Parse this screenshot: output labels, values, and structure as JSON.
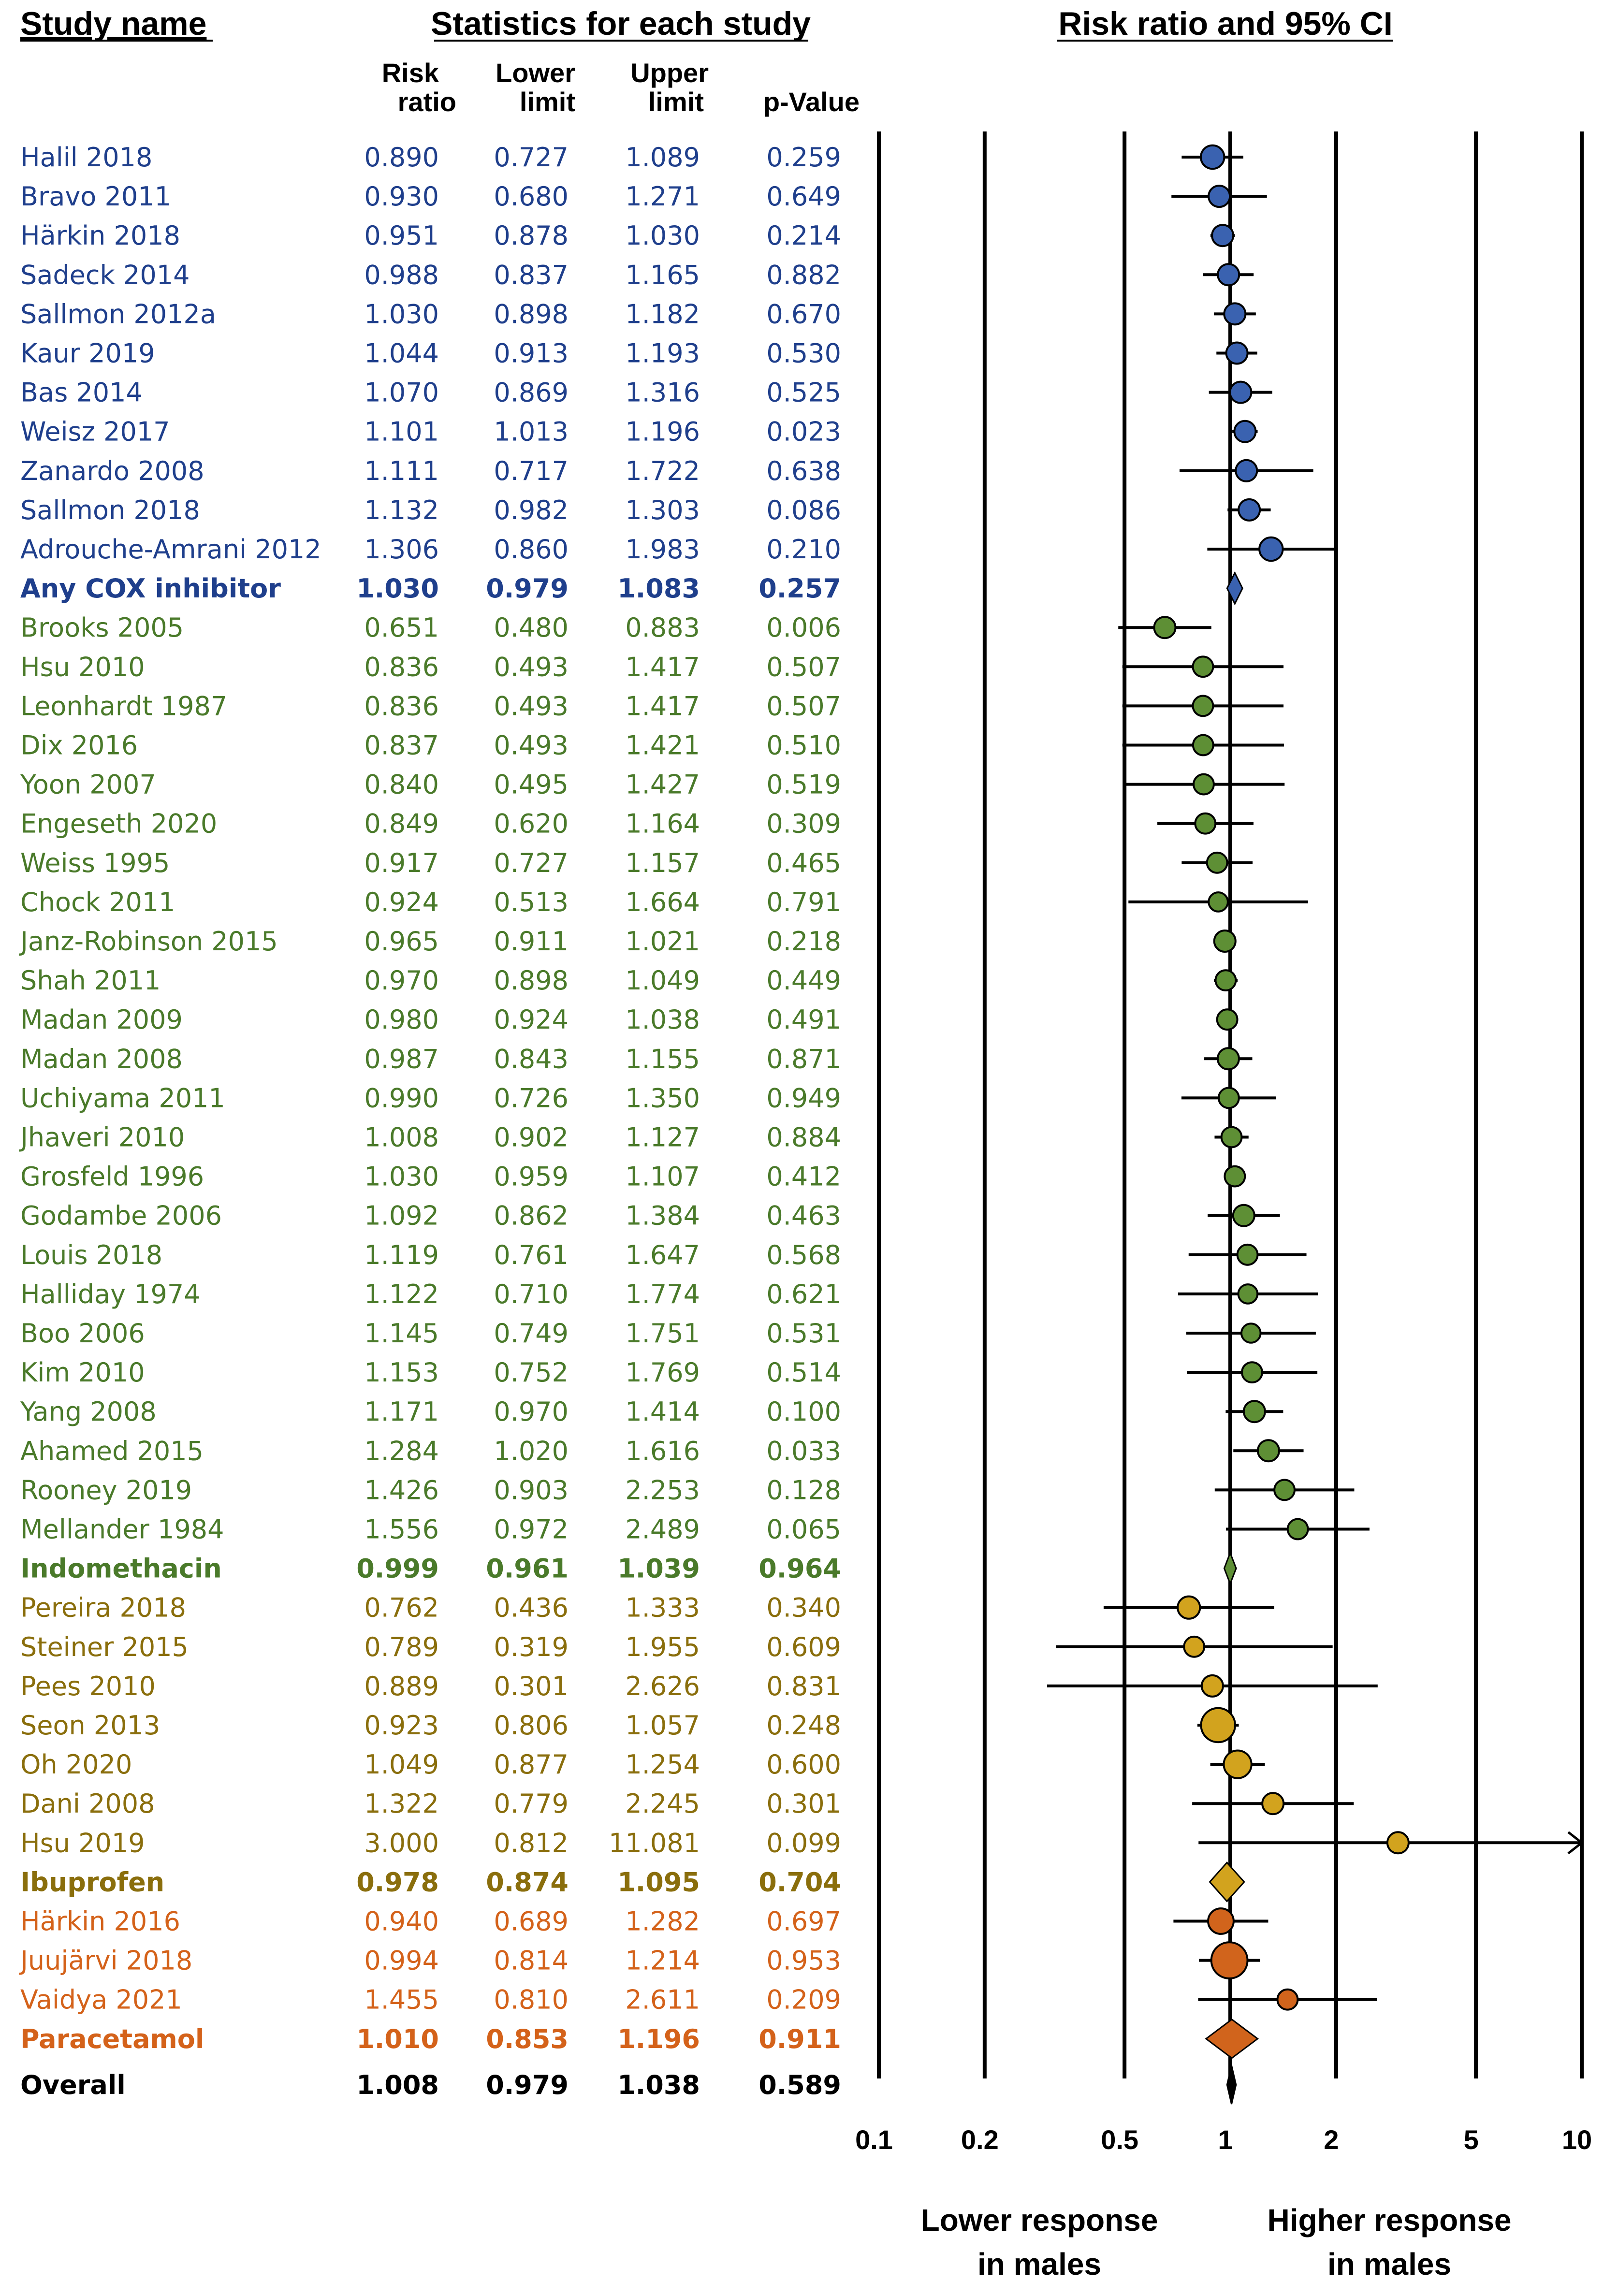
{
  "chart_data": {
    "type": "forest",
    "headers": {
      "study_name": "Study name",
      "statistics": "Statistics for each study",
      "plot": "Risk ratio and 95% CI",
      "risk_ratio_1": "Risk",
      "risk_ratio_2": "ratio",
      "lower_1": "Lower",
      "lower_2": "limit",
      "upper_1": "Upper",
      "upper_2": "limit",
      "pvalue": "p-Value"
    },
    "x_axis": {
      "scale": "log",
      "range": [
        0.1,
        10
      ],
      "ticks": [
        {
          "value": 0.1,
          "label": "0.1"
        },
        {
          "value": 0.2,
          "label": "0.2"
        },
        {
          "value": 0.5,
          "label": "0.5"
        },
        {
          "value": 1,
          "label": "1"
        },
        {
          "value": 2,
          "label": "2"
        },
        {
          "value": 5,
          "label": "5"
        },
        {
          "value": 10,
          "label": "10"
        }
      ],
      "label_left_1": "Lower response",
      "label_left_2": "in males",
      "label_right_1": "Higher response",
      "label_right_2": "in males"
    },
    "colors": {
      "cox": "#1f3f8c",
      "cox_fill": "#3a62b0",
      "indo": "#4a7a2a",
      "indo_fill": "#5e8f35",
      "ibu": "#8a6e0c",
      "ibu_fill": "#d2a31e",
      "para": "#d4621a",
      "para_fill": "#d1641c",
      "overall": "#000000"
    },
    "rows": [
      {
        "study": "Halil 2018",
        "rr": "0.890",
        "lo": "0.727",
        "hi": "1.089",
        "p": "0.259",
        "g": "cox",
        "kind": "study",
        "w": 1.1
      },
      {
        "study": "Bravo 2011",
        "rr": "0.930",
        "lo": "0.680",
        "hi": "1.271",
        "p": "0.649",
        "g": "cox",
        "kind": "study",
        "w": 1.0
      },
      {
        "study": "Härkin 2018",
        "rr": "0.951",
        "lo": "0.878",
        "hi": "1.030",
        "p": "0.214",
        "g": "cox",
        "kind": "study",
        "w": 1.0
      },
      {
        "study": "Sadeck 2014",
        "rr": "0.988",
        "lo": "0.837",
        "hi": "1.165",
        "p": "0.882",
        "g": "cox",
        "kind": "study",
        "w": 1.0
      },
      {
        "study": "Sallmon 2012a",
        "rr": "1.030",
        "lo": "0.898",
        "hi": "1.182",
        "p": "0.670",
        "g": "cox",
        "kind": "study",
        "w": 1.0
      },
      {
        "study": "Kaur 2019",
        "rr": "1.044",
        "lo": "0.913",
        "hi": "1.193",
        "p": "0.530",
        "g": "cox",
        "kind": "study",
        "w": 1.0
      },
      {
        "study": "Bas 2014",
        "rr": "1.070",
        "lo": "0.869",
        "hi": "1.316",
        "p": "0.525",
        "g": "cox",
        "kind": "study",
        "w": 1.0
      },
      {
        "study": "Weisz 2017",
        "rr": "1.101",
        "lo": "1.013",
        "hi": "1.196",
        "p": "0.023",
        "g": "cox",
        "kind": "study",
        "w": 1.0
      },
      {
        "study": "Zanardo 2008",
        "rr": "1.111",
        "lo": "0.717",
        "hi": "1.722",
        "p": "0.638",
        "g": "cox",
        "kind": "study",
        "w": 1.0
      },
      {
        "study": "Sallmon 2018",
        "rr": "1.132",
        "lo": "0.982",
        "hi": "1.303",
        "p": "0.086",
        "g": "cox",
        "kind": "study",
        "w": 1.0
      },
      {
        "study": "Adrouche-Amrani 2012",
        "rr": "1.306",
        "lo": "0.860",
        "hi": "1.983",
        "p": "0.210",
        "g": "cox",
        "kind": "study",
        "w": 1.1
      },
      {
        "study": "Any COX inhibitor",
        "rr": "1.030",
        "lo": "0.979",
        "hi": "1.083",
        "p": "0.257",
        "g": "cox",
        "kind": "summary"
      },
      {
        "study": "Brooks 2005",
        "rr": "0.651",
        "lo": "0.480",
        "hi": "0.883",
        "p": "0.006",
        "g": "indo",
        "kind": "study",
        "w": 1.0
      },
      {
        "study": "Hsu 2010",
        "rr": "0.836",
        "lo": "0.493",
        "hi": "1.417",
        "p": "0.507",
        "g": "indo",
        "kind": "study",
        "w": 0.95
      },
      {
        "study": "Leonhardt 1987",
        "rr": "0.836",
        "lo": "0.493",
        "hi": "1.417",
        "p": "0.507",
        "g": "indo",
        "kind": "study",
        "w": 0.95
      },
      {
        "study": "Dix 2016",
        "rr": "0.837",
        "lo": "0.493",
        "hi": "1.421",
        "p": "0.510",
        "g": "indo",
        "kind": "study",
        "w": 0.95
      },
      {
        "study": "Yoon 2007",
        "rr": "0.840",
        "lo": "0.495",
        "hi": "1.427",
        "p": "0.519",
        "g": "indo",
        "kind": "study",
        "w": 0.95
      },
      {
        "study": "Engeseth 2020",
        "rr": "0.849",
        "lo": "0.620",
        "hi": "1.164",
        "p": "0.309",
        "g": "indo",
        "kind": "study",
        "w": 0.95
      },
      {
        "study": "Weiss 1995",
        "rr": "0.917",
        "lo": "0.727",
        "hi": "1.157",
        "p": "0.465",
        "g": "indo",
        "kind": "study",
        "w": 0.95
      },
      {
        "study": "Chock 2011",
        "rr": "0.924",
        "lo": "0.513",
        "hi": "1.664",
        "p": "0.791",
        "g": "indo",
        "kind": "study",
        "w": 0.9
      },
      {
        "study": "Janz-Robinson 2015",
        "rr": "0.965",
        "lo": "0.911",
        "hi": "1.021",
        "p": "0.218",
        "g": "indo",
        "kind": "study",
        "w": 1.0
      },
      {
        "study": "Shah 2011",
        "rr": "0.970",
        "lo": "0.898",
        "hi": "1.049",
        "p": "0.449",
        "g": "indo",
        "kind": "study",
        "w": 0.95
      },
      {
        "study": "Madan 2009",
        "rr": "0.980",
        "lo": "0.924",
        "hi": "1.038",
        "p": "0.491",
        "g": "indo",
        "kind": "study",
        "w": 0.95
      },
      {
        "study": "Madan 2008",
        "rr": "0.987",
        "lo": "0.843",
        "hi": "1.155",
        "p": "0.871",
        "g": "indo",
        "kind": "study",
        "w": 1.0
      },
      {
        "study": "Uchiyama 2011",
        "rr": "0.990",
        "lo": "0.726",
        "hi": "1.350",
        "p": "0.949",
        "g": "indo",
        "kind": "study",
        "w": 0.95
      },
      {
        "study": "Jhaveri 2010",
        "rr": "1.008",
        "lo": "0.902",
        "hi": "1.127",
        "p": "0.884",
        "g": "indo",
        "kind": "study",
        "w": 0.95
      },
      {
        "study": "Grosfeld 1996",
        "rr": "1.030",
        "lo": "0.959",
        "hi": "1.107",
        "p": "0.412",
        "g": "indo",
        "kind": "study",
        "w": 0.95
      },
      {
        "study": "Godambe 2006",
        "rr": "1.092",
        "lo": "0.862",
        "hi": "1.384",
        "p": "0.463",
        "g": "indo",
        "kind": "study",
        "w": 1.0
      },
      {
        "study": "Louis 2018",
        "rr": "1.119",
        "lo": "0.761",
        "hi": "1.647",
        "p": "0.568",
        "g": "indo",
        "kind": "study",
        "w": 0.95
      },
      {
        "study": "Halliday 1974",
        "rr": "1.122",
        "lo": "0.710",
        "hi": "1.774",
        "p": "0.621",
        "g": "indo",
        "kind": "study",
        "w": 0.9
      },
      {
        "study": "Boo 2006",
        "rr": "1.145",
        "lo": "0.749",
        "hi": "1.751",
        "p": "0.531",
        "g": "indo",
        "kind": "study",
        "w": 0.9
      },
      {
        "study": "Kim 2010",
        "rr": "1.153",
        "lo": "0.752",
        "hi": "1.769",
        "p": "0.514",
        "g": "indo",
        "kind": "study",
        "w": 0.95
      },
      {
        "study": "Yang 2008",
        "rr": "1.171",
        "lo": "0.970",
        "hi": "1.414",
        "p": "0.100",
        "g": "indo",
        "kind": "study",
        "w": 1.0
      },
      {
        "study": "Ahamed 2015",
        "rr": "1.284",
        "lo": "1.020",
        "hi": "1.616",
        "p": "0.033",
        "g": "indo",
        "kind": "study",
        "w": 1.0
      },
      {
        "study": "Rooney 2019",
        "rr": "1.426",
        "lo": "0.903",
        "hi": "2.253",
        "p": "0.128",
        "g": "indo",
        "kind": "study",
        "w": 0.95
      },
      {
        "study": "Mellander 1984",
        "rr": "1.556",
        "lo": "0.972",
        "hi": "2.489",
        "p": "0.065",
        "g": "indo",
        "kind": "study",
        "w": 0.95
      },
      {
        "study": "Indomethacin",
        "rr": "0.999",
        "lo": "0.961",
        "hi": "1.039",
        "p": "0.964",
        "g": "indo",
        "kind": "summary"
      },
      {
        "study": "Pereira 2018",
        "rr": "0.762",
        "lo": "0.436",
        "hi": "1.333",
        "p": "0.340",
        "g": "ibu",
        "kind": "study",
        "w": 1.05
      },
      {
        "study": "Steiner 2015",
        "rr": "0.789",
        "lo": "0.319",
        "hi": "1.955",
        "p": "0.609",
        "g": "ibu",
        "kind": "study",
        "w": 0.95
      },
      {
        "study": "Pees 2010",
        "rr": "0.889",
        "lo": "0.301",
        "hi": "2.626",
        "p": "0.831",
        "g": "ibu",
        "kind": "study",
        "w": 1.0
      },
      {
        "study": "Seon 2013",
        "rr": "0.923",
        "lo": "0.806",
        "hi": "1.057",
        "p": "0.248",
        "g": "ibu",
        "kind": "study",
        "w": 1.6
      },
      {
        "study": "Oh 2020",
        "rr": "1.049",
        "lo": "0.877",
        "hi": "1.254",
        "p": "0.600",
        "g": "ibu",
        "kind": "study",
        "w": 1.3
      },
      {
        "study": "Dani 2008",
        "rr": "1.322",
        "lo": "0.779",
        "hi": "2.245",
        "p": "0.301",
        "g": "ibu",
        "kind": "study",
        "w": 1.0
      },
      {
        "study": "Hsu 2019",
        "rr": "3.000",
        "lo": "0.812",
        "hi": "11.081",
        "p": "0.099",
        "g": "ibu",
        "kind": "study",
        "w": 1.0
      },
      {
        "study": "Ibuprofen",
        "rr": "0.978",
        "lo": "0.874",
        "hi": "1.095",
        "p": "0.704",
        "g": "ibu",
        "kind": "summary"
      },
      {
        "study": "Härkin 2016",
        "rr": "0.940",
        "lo": "0.689",
        "hi": "1.282",
        "p": "0.697",
        "g": "para",
        "kind": "study",
        "w": 1.2
      },
      {
        "study": "Juujärvi 2018",
        "rr": "0.994",
        "lo": "0.814",
        "hi": "1.214",
        "p": "0.953",
        "g": "para",
        "kind": "study",
        "w": 1.7
      },
      {
        "study": "Vaidya 2021",
        "rr": "1.455",
        "lo": "0.810",
        "hi": "2.611",
        "p": "0.209",
        "g": "para",
        "kind": "study",
        "w": 0.95
      },
      {
        "study": "Paracetamol",
        "rr": "1.010",
        "lo": "0.853",
        "hi": "1.196",
        "p": "0.911",
        "g": "para",
        "kind": "summary"
      },
      {
        "study": "Overall",
        "rr": "1.008",
        "lo": "0.979",
        "hi": "1.038",
        "p": "0.589",
        "g": "overall",
        "kind": "overall"
      }
    ]
  }
}
